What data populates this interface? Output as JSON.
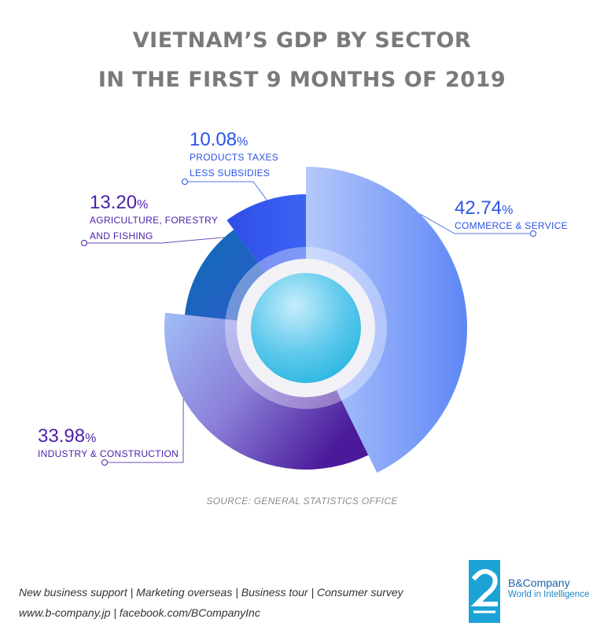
{
  "title": {
    "line1": "VIETNAM’S GDP BY SECTOR",
    "line2": "IN THE FIRST 9 MONTHS OF 2019"
  },
  "chart_data": {
    "type": "pie",
    "title": "VIETNAM’S GDP BY SECTOR IN THE FIRST 9 MONTHS OF 2019",
    "slices": [
      {
        "label": "COMMERCE & SERVICE",
        "label_lines": [
          "COMMERCE & SERVICE"
        ],
        "value": 42.74,
        "value_text": "42.74",
        "color": "#6f93f8"
      },
      {
        "label": "INDUSTRY & CONSTRUCTION",
        "label_lines": [
          "INDUSTRY & CONSTRUCTION"
        ],
        "value": 33.98,
        "value_text": "33.98",
        "color": "#6a3fb8"
      },
      {
        "label": "AGRICULTURE, FORESTRY AND FISHING",
        "label_lines": [
          "AGRICULTURE, FORESTRY",
          "AND FISHING"
        ],
        "value": 13.2,
        "value_text": "13.20",
        "color": "#1a73c4"
      },
      {
        "label": "PRODUCTS TAXES LESS SUBSIDIES",
        "label_lines": [
          "PRODUCTS TAXES",
          "LESS SUBSIDIES"
        ],
        "value": 10.08,
        "value_text": "10.08",
        "color": "#2d5ff0"
      }
    ],
    "unit": "%",
    "label_colors": {
      "blue": "#2a54e6",
      "purple": "#4b1fa8"
    }
  },
  "source": "SOURCE: GENERAL STATISTICS OFFICE",
  "footer": {
    "line1": "New business support | Marketing overseas | Business tour | Consumer survey",
    "line2": "www.b-company.jp | facebook.com/BCompanyInc"
  },
  "logo": {
    "name": "B&Company",
    "tagline": "World in Intelligence",
    "color": "#1ba3d6"
  }
}
